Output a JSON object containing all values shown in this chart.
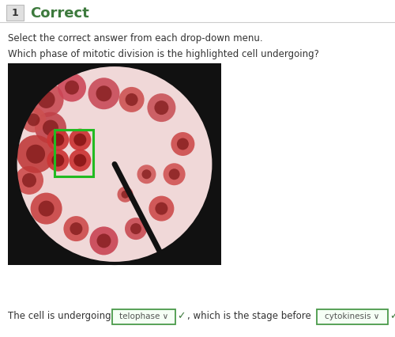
{
  "bg_color": "#ffffff",
  "header_number": "1",
  "header_number_bg": "#e0e0e0",
  "header_text": "Correct",
  "header_color": "#3d7a3d",
  "instruction": "Select the correct answer from each drop-down menu.",
  "question": "Which phase of mitotic division is the highlighted cell undergoing?",
  "bottom_text_prefix": "The cell is undergoing ",
  "dropdown1_text": "telophase ∨",
  "bottom_text_middle": ", which is the stage before ",
  "dropdown2_text": "cytokinesis ∨",
  "bottom_text_suffix": ".",
  "dropdown_border": "#4a9a4a",
  "check_color": "#3d7a3d",
  "text_color": "#333333",
  "fig_width": 5.0,
  "fig_height": 4.26,
  "dpi": 100
}
